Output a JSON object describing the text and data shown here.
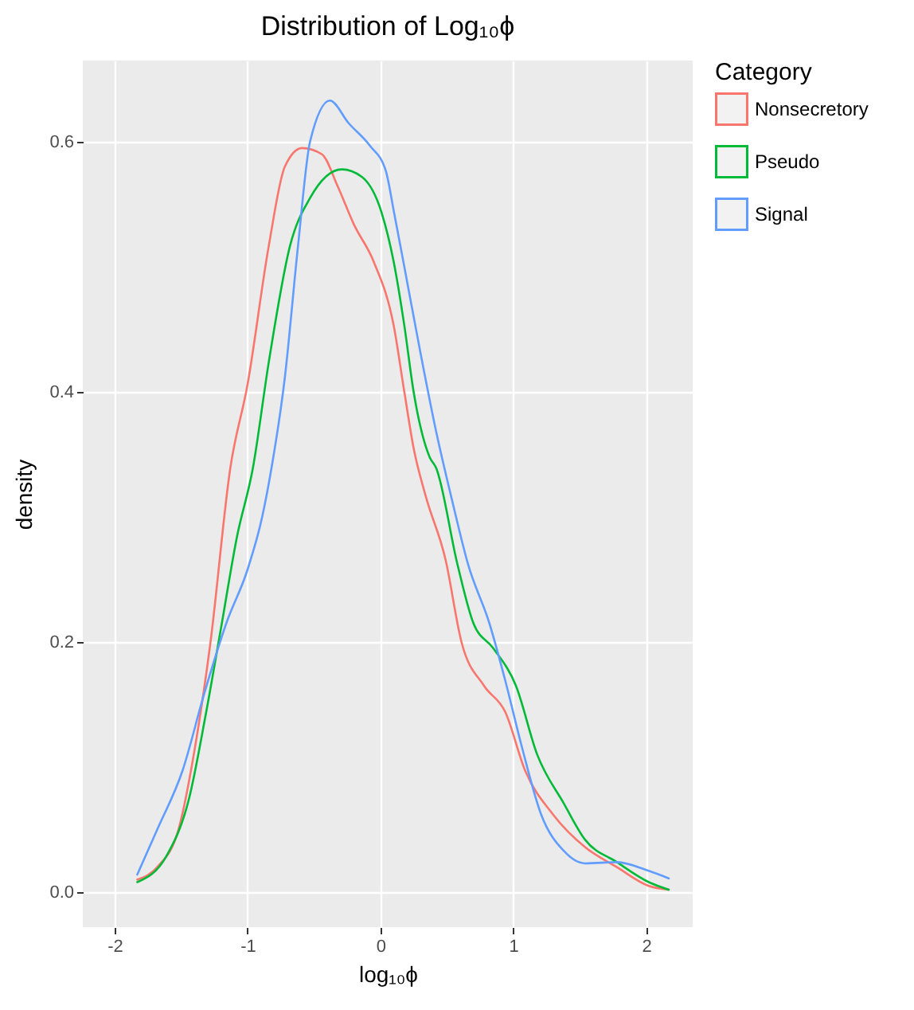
{
  "chart_data": {
    "type": "line",
    "title": "Distribution of Log₁₀ϕ",
    "xlabel": "log₁₀ϕ",
    "ylabel": "density",
    "legend_title": "Category",
    "legend": "right",
    "grid": true,
    "xlim": [
      -2.24,
      2.35
    ],
    "xticks": [
      -2,
      -1,
      0,
      1,
      2
    ],
    "ylim": [
      -0.028,
      0.665
    ],
    "yticks": [
      {
        "value": 0,
        "label": "0.0"
      },
      0.2,
      0.4,
      0.6
    ],
    "series": [
      {
        "name": "Nonsecretory",
        "color": "#f8766d",
        "x": [
          -1.83,
          -1.68,
          -1.52,
          -1.4,
          -1.28,
          -1.13,
          -1.0,
          -0.84,
          -0.72,
          -0.59,
          -0.44,
          -0.32,
          -0.2,
          -0.05,
          0.1,
          0.18,
          0.25,
          0.34,
          0.49,
          0.61,
          0.78,
          0.94,
          1.09,
          1.3,
          1.54,
          1.78,
          2.02,
          2.17
        ],
        "values": [
          0.01,
          0.02,
          0.05,
          0.113,
          0.199,
          0.339,
          0.406,
          0.517,
          0.58,
          0.595,
          0.59,
          0.564,
          0.534,
          0.504,
          0.453,
          0.4,
          0.355,
          0.317,
          0.266,
          0.2,
          0.165,
          0.144,
          0.097,
          0.062,
          0.036,
          0.02,
          0.005,
          0.002
        ]
      },
      {
        "name": "Pseudo",
        "color": "#00ba38",
        "x": [
          -1.83,
          -1.61,
          -1.44,
          -1.32,
          -1.2,
          -1.08,
          -0.96,
          -0.84,
          -0.68,
          -0.53,
          -0.29,
          -0.14,
          0.01,
          0.1,
          0.18,
          0.25,
          0.37,
          0.42,
          0.58,
          0.7,
          0.85,
          1.02,
          1.18,
          1.38,
          1.54,
          1.78,
          2.02,
          2.17
        ],
        "values": [
          0.008,
          0.029,
          0.075,
          0.139,
          0.211,
          0.284,
          0.339,
          0.424,
          0.517,
          0.555,
          0.578,
          0.572,
          0.543,
          0.504,
          0.453,
          0.4,
          0.348,
          0.339,
          0.262,
          0.215,
          0.195,
          0.165,
          0.11,
          0.071,
          0.042,
          0.024,
          0.008,
          0.002
        ]
      },
      {
        "name": "Signal",
        "color": "#619cff",
        "x": [
          -1.83,
          -1.68,
          -1.49,
          -1.32,
          -1.16,
          -1.0,
          -0.89,
          -0.82,
          -0.72,
          -0.62,
          -0.53,
          -0.38,
          -0.24,
          -0.08,
          0.04,
          0.1,
          0.18,
          0.3,
          0.42,
          0.54,
          0.66,
          0.82,
          0.94,
          1.06,
          1.21,
          1.38,
          1.54,
          1.78,
          2.02,
          2.17
        ],
        "values": [
          0.014,
          0.05,
          0.097,
          0.161,
          0.215,
          0.258,
          0.3,
          0.339,
          0.411,
          0.517,
          0.6,
          0.633,
          0.615,
          0.597,
          0.577,
          0.545,
          0.5,
          0.432,
          0.368,
          0.313,
          0.262,
          0.215,
          0.169,
          0.118,
          0.062,
          0.033,
          0.023,
          0.024,
          0.017,
          0.011
        ]
      }
    ]
  }
}
